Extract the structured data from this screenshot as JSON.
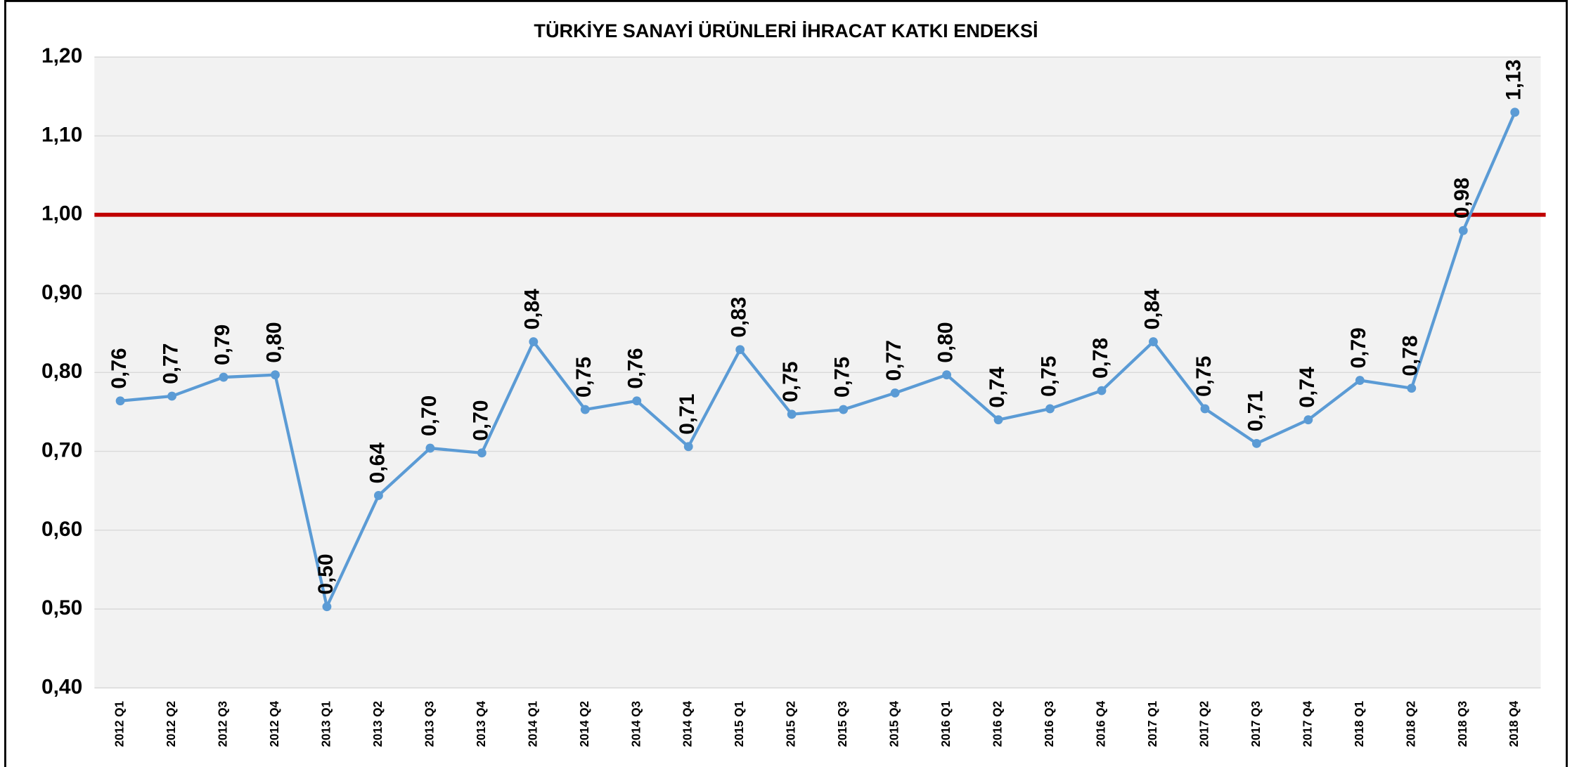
{
  "chart_data": {
    "type": "line",
    "title": "TÜRKİYE SANAYİ ÜRÜNLERİ İHRACAT KATKI ENDEKSİ",
    "categories": [
      "2012 Q1",
      "2012 Q2",
      "2012 Q3",
      "2012 Q4",
      "2013 Q1",
      "2013 Q2",
      "2013 Q3",
      "2013 Q4",
      "2014 Q1",
      "2014 Q2",
      "2014 Q3",
      "2014 Q4",
      "2015 Q1",
      "2015 Q2",
      "2015 Q3",
      "2015 Q4",
      "2016 Q1",
      "2016 Q2",
      "2016 Q3",
      "2016 Q4",
      "2017 Q1",
      "2017 Q2",
      "2017 Q3",
      "2017 Q4",
      "2018 Q1",
      "2018 Q2",
      "2018 Q3",
      "2018 Q4"
    ],
    "series": [
      {
        "color": "#5b9bd5",
        "values": [
          0.764,
          0.77,
          0.794,
          0.797,
          0.503,
          0.644,
          0.704,
          0.698,
          0.839,
          0.753,
          0.764,
          0.706,
          0.829,
          0.747,
          0.753,
          0.774,
          0.797,
          0.74,
          0.754,
          0.777,
          0.839,
          0.754,
          0.71,
          0.74,
          0.79,
          0.78,
          0.98,
          1.13
        ],
        "value_labels": [
          "0,76",
          "0,77",
          "0,79",
          "0,80",
          "0,50",
          "0,64",
          "0,70",
          "0,70",
          "0,84",
          "0,75",
          "0,76",
          "0,71",
          "0,83",
          "0,75",
          "0,75",
          "0,77",
          "0,80",
          "0,74",
          "0,75",
          "0,78",
          "0,84",
          "0,75",
          "0,71",
          "0,74",
          "0,79",
          "0,78",
          "0,98",
          "1,13"
        ]
      }
    ],
    "ylim": [
      0.4,
      1.2
    ],
    "yticks": [
      {
        "value": 0.4,
        "label": "0,40"
      },
      {
        "value": 0.5,
        "label": "0,50"
      },
      {
        "value": 0.6,
        "label": "0,60"
      },
      {
        "value": 0.7,
        "label": "0,70"
      },
      {
        "value": 0.8,
        "label": "0,80"
      },
      {
        "value": 0.9,
        "label": "0,90"
      },
      {
        "value": 1.0,
        "label": "1,00"
      },
      {
        "value": 1.1,
        "label": "1,10"
      },
      {
        "value": 1.2,
        "label": "1,20"
      }
    ],
    "grid": true,
    "reference_line": {
      "value": 1.0,
      "color": "#c00000"
    }
  }
}
